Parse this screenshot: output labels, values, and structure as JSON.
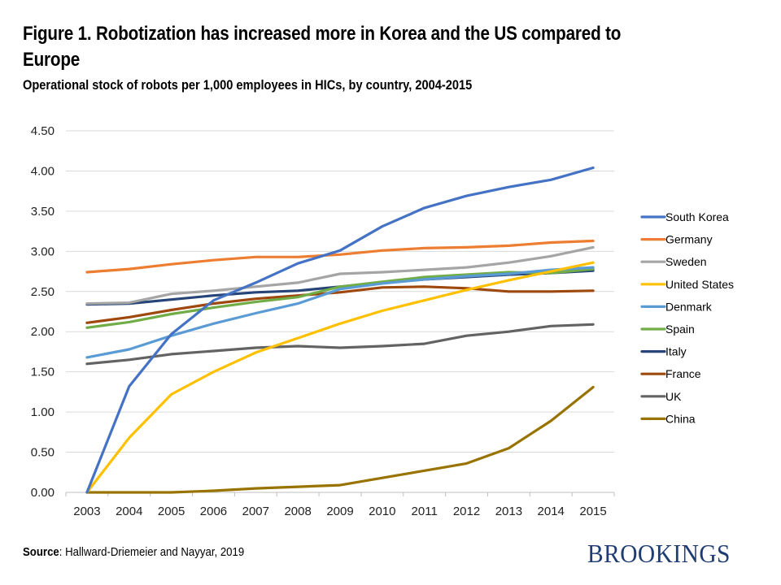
{
  "header": {
    "title": "Figure 1. Robotization has increased more in Korea and the US compared to Europe",
    "subtitle": "Operational stock of robots per 1,000 employees in HICs, by country, 2004-2015"
  },
  "footer": {
    "source_label": "Source",
    "source_text": ": Hallward-Driemeier and Nayyar, 2019",
    "logo": "BROOKINGS"
  },
  "chart_data": {
    "type": "line",
    "title": "Figure 1. Robotization has increased more in Korea and the US compared to Europe",
    "subtitle": "Operational stock of robots per 1,000 employees in HICs, by country, 2004-2015",
    "xlabel": "",
    "ylabel": "",
    "x": [
      "2003",
      "2004",
      "2005",
      "2006",
      "2007",
      "2008",
      "2009",
      "2010",
      "2011",
      "2012",
      "2013",
      "2014",
      "2015"
    ],
    "ylim": [
      0,
      4.5
    ],
    "yticks": [
      "0.00",
      "0.50",
      "1.00",
      "1.50",
      "2.00",
      "2.50",
      "3.00",
      "3.50",
      "4.00",
      "4.50"
    ],
    "grid": true,
    "legend_position": "right",
    "series": [
      {
        "name": "South Korea",
        "color": "#4472C4",
        "values": [
          0,
          1.32,
          1.97,
          2.39,
          2.61,
          2.85,
          3.01,
          3.31,
          3.54,
          3.69,
          3.8,
          3.89,
          4.04
        ]
      },
      {
        "name": "Germany",
        "color": "#ED7D31",
        "values": [
          2.74,
          2.78,
          2.84,
          2.89,
          2.93,
          2.93,
          2.96,
          3.01,
          3.04,
          3.05,
          3.07,
          3.11,
          3.13
        ]
      },
      {
        "name": "Sweden",
        "color": "#A5A5A5",
        "values": [
          2.35,
          2.36,
          2.47,
          2.51,
          2.56,
          2.61,
          2.72,
          2.74,
          2.77,
          2.8,
          2.86,
          2.94,
          3.05
        ]
      },
      {
        "name": "United States",
        "color": "#FFC000",
        "values": [
          0,
          0.68,
          1.22,
          1.5,
          1.74,
          1.92,
          2.1,
          2.26,
          2.39,
          2.52,
          2.64,
          2.75,
          2.86
        ]
      },
      {
        "name": "Denmark",
        "color": "#5B9BD5",
        "values": [
          1.68,
          1.78,
          1.95,
          2.1,
          2.23,
          2.35,
          2.53,
          2.6,
          2.65,
          2.69,
          2.72,
          2.77,
          2.8
        ]
      },
      {
        "name": "Spain",
        "color": "#70AD47",
        "values": [
          2.05,
          2.12,
          2.22,
          2.3,
          2.37,
          2.43,
          2.56,
          2.62,
          2.68,
          2.71,
          2.74,
          2.73,
          2.78
        ]
      },
      {
        "name": "Italy",
        "color": "#264478",
        "values": [
          2.34,
          2.35,
          2.4,
          2.45,
          2.49,
          2.51,
          2.56,
          2.61,
          2.65,
          2.68,
          2.71,
          2.73,
          2.76
        ]
      },
      {
        "name": "France",
        "color": "#9E480E",
        "values": [
          2.11,
          2.18,
          2.27,
          2.35,
          2.41,
          2.45,
          2.49,
          2.55,
          2.56,
          2.54,
          2.5,
          2.5,
          2.51
        ]
      },
      {
        "name": "UK",
        "color": "#636363",
        "values": [
          1.6,
          1.65,
          1.72,
          1.76,
          1.8,
          1.82,
          1.8,
          1.82,
          1.85,
          1.95,
          2.0,
          2.07,
          2.09
        ]
      },
      {
        "name": "China",
        "color": "#997300",
        "values": [
          0,
          0,
          0,
          0.02,
          0.05,
          0.07,
          0.09,
          0.18,
          0.27,
          0.36,
          0.55,
          0.89,
          1.31
        ]
      }
    ]
  }
}
